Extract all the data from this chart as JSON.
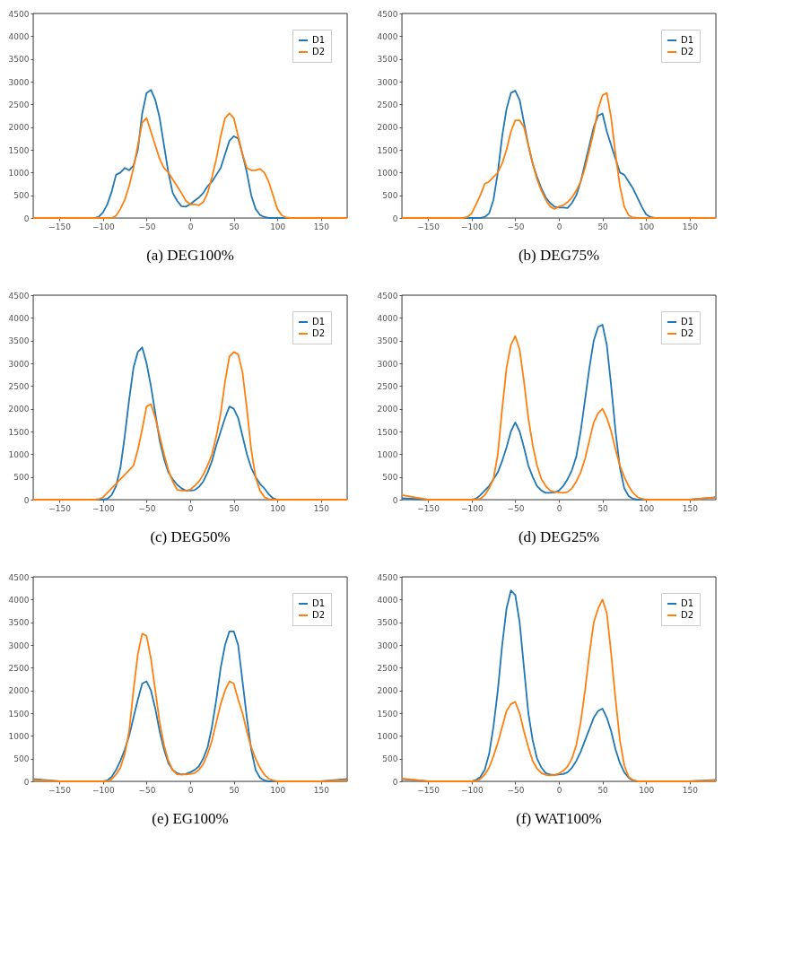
{
  "chart_data": [
    {
      "type": "line",
      "title": "(a) DEG100%",
      "xlim": [
        -180,
        180
      ],
      "xticks": [
        -150,
        -100,
        -50,
        0,
        50,
        100,
        150
      ],
      "ylim": [
        0,
        4500
      ],
      "yticks": [
        0,
        500,
        1000,
        1500,
        2000,
        2500,
        3000,
        3500,
        4000,
        4500
      ],
      "legend": "top right",
      "x": [
        -180,
        -150,
        -120,
        -115,
        -110,
        -105,
        -100,
        -95,
        -90,
        -85,
        -80,
        -75,
        -70,
        -65,
        -60,
        -55,
        -50,
        -45,
        -40,
        -35,
        -30,
        -25,
        -20,
        -15,
        -10,
        -5,
        0,
        5,
        10,
        15,
        20,
        25,
        30,
        35,
        40,
        45,
        50,
        55,
        60,
        65,
        70,
        75,
        80,
        85,
        90,
        95,
        100,
        105,
        110,
        115,
        120,
        150,
        180
      ],
      "series": [
        {
          "name": "D1",
          "color": "#1f77b4",
          "values": [
            null,
            null,
            null,
            0,
            0,
            20,
            120,
            300,
            580,
            950,
            1000,
            1100,
            1050,
            1150,
            1500,
            2300,
            2750,
            2820,
            2600,
            2200,
            1600,
            1000,
            550,
            380,
            260,
            250,
            300,
            380,
            450,
            550,
            700,
            800,
            950,
            1100,
            1400,
            1700,
            1800,
            1750,
            1400,
            1000,
            500,
            200,
            70,
            20,
            0,
            0,
            0,
            0,
            0,
            0,
            null,
            null,
            null
          ]
        },
        {
          "name": "D2",
          "color": "#ff7f0e",
          "values": [
            0,
            0,
            0,
            0,
            0,
            0,
            0,
            0,
            0,
            50,
            200,
            400,
            700,
            1100,
            1600,
            2100,
            2200,
            1900,
            1600,
            1300,
            1100,
            1000,
            850,
            700,
            550,
            380,
            300,
            300,
            280,
            350,
            550,
            900,
            1300,
            1800,
            2200,
            2300,
            2200,
            1800,
            1400,
            1100,
            1050,
            1050,
            1080,
            1000,
            800,
            500,
            200,
            60,
            10,
            0,
            0,
            0,
            0
          ]
        }
      ]
    },
    {
      "type": "line",
      "title": "(b) DEG75%",
      "xlim": [
        -180,
        180
      ],
      "xticks": [
        -150,
        -100,
        -50,
        0,
        50,
        100,
        150
      ],
      "ylim": [
        0,
        4500
      ],
      "yticks": [
        0,
        500,
        1000,
        1500,
        2000,
        2500,
        3000,
        3500,
        4000,
        4500
      ],
      "legend": "top right",
      "x": [
        -180,
        -150,
        -120,
        -115,
        -110,
        -105,
        -100,
        -95,
        -90,
        -85,
        -80,
        -75,
        -70,
        -65,
        -60,
        -55,
        -50,
        -45,
        -40,
        -35,
        -30,
        -25,
        -20,
        -15,
        -10,
        -5,
        0,
        5,
        10,
        15,
        20,
        25,
        30,
        35,
        40,
        45,
        50,
        55,
        60,
        65,
        70,
        75,
        80,
        85,
        90,
        95,
        100,
        105,
        110,
        115,
        120,
        150,
        180
      ],
      "series": [
        {
          "name": "D1",
          "color": "#1f77b4",
          "values": [
            null,
            null,
            null,
            0,
            0,
            0,
            0,
            0,
            0,
            20,
            100,
            400,
            1000,
            1800,
            2400,
            2750,
            2800,
            2600,
            2100,
            1600,
            1200,
            900,
            650,
            450,
            330,
            250,
            230,
            230,
            220,
            330,
            500,
            800,
            1200,
            1600,
            2000,
            2250,
            2300,
            1900,
            1600,
            1300,
            1000,
            950,
            800,
            650,
            450,
            250,
            80,
            20,
            0,
            0,
            null,
            null,
            null
          ]
        },
        {
          "name": "D2",
          "color": "#ff7f0e",
          "values": [
            0,
            0,
            0,
            0,
            0,
            20,
            100,
            300,
            500,
            750,
            800,
            900,
            1000,
            1200,
            1500,
            1900,
            2150,
            2150,
            2000,
            1600,
            1200,
            850,
            600,
            400,
            250,
            200,
            250,
            280,
            350,
            450,
            600,
            800,
            1100,
            1500,
            1900,
            2400,
            2700,
            2750,
            2200,
            1400,
            700,
            250,
            60,
            10,
            0,
            0,
            0,
            0,
            0,
            0,
            0,
            0,
            0
          ]
        }
      ]
    },
    {
      "type": "line",
      "title": "(c) DEG50%",
      "xlim": [
        -180,
        180
      ],
      "xticks": [
        -150,
        -100,
        -50,
        0,
        50,
        100,
        150
      ],
      "ylim": [
        0,
        4500
      ],
      "yticks": [
        0,
        500,
        1000,
        1500,
        2000,
        2500,
        3000,
        3500,
        4000,
        4500
      ],
      "legend": "top right",
      "x": [
        -180,
        -150,
        -120,
        -115,
        -110,
        -105,
        -100,
        -95,
        -90,
        -85,
        -80,
        -75,
        -70,
        -65,
        -60,
        -55,
        -50,
        -45,
        -40,
        -35,
        -30,
        -25,
        -20,
        -15,
        -10,
        -5,
        0,
        5,
        10,
        15,
        20,
        25,
        30,
        35,
        40,
        45,
        50,
        55,
        60,
        65,
        70,
        75,
        80,
        85,
        90,
        95,
        100,
        105,
        110,
        115,
        120,
        150,
        180
      ],
      "series": [
        {
          "name": "D1",
          "color": "#1f77b4",
          "values": [
            null,
            null,
            null,
            0,
            0,
            0,
            0,
            20,
            100,
            300,
            700,
            1400,
            2200,
            2900,
            3250,
            3350,
            3000,
            2500,
            1900,
            1300,
            900,
            600,
            450,
            330,
            250,
            200,
            200,
            210,
            280,
            400,
            600,
            850,
            1200,
            1500,
            1800,
            2050,
            2000,
            1800,
            1400,
            1000,
            700,
            500,
            350,
            250,
            120,
            30,
            0,
            0,
            null,
            null,
            null,
            null,
            null
          ]
        },
        {
          "name": "D2",
          "color": "#ff7f0e",
          "values": [
            0,
            0,
            0,
            0,
            0,
            10,
            50,
            150,
            250,
            350,
            450,
            550,
            650,
            750,
            1100,
            1550,
            2050,
            2100,
            1800,
            1400,
            1000,
            650,
            400,
            220,
            200,
            200,
            220,
            300,
            400,
            550,
            750,
            1000,
            1400,
            1900,
            2600,
            3150,
            3250,
            3200,
            2800,
            2000,
            1100,
            500,
            200,
            60,
            10,
            0,
            0,
            0,
            0,
            0,
            0,
            0,
            0
          ]
        }
      ]
    },
    {
      "type": "line",
      "title": "(d) DEG25%",
      "xlim": [
        -180,
        180
      ],
      "xticks": [
        -150,
        -100,
        -50,
        0,
        50,
        100,
        150
      ],
      "ylim": [
        0,
        4500
      ],
      "yticks": [
        0,
        500,
        1000,
        1500,
        2000,
        2500,
        3000,
        3500,
        4000,
        4500
      ],
      "legend": "top right",
      "x": [
        -180,
        -150,
        -120,
        -115,
        -110,
        -105,
        -100,
        -95,
        -90,
        -85,
        -80,
        -75,
        -70,
        -65,
        -60,
        -55,
        -50,
        -45,
        -40,
        -35,
        -30,
        -25,
        -20,
        -15,
        -10,
        -5,
        0,
        5,
        10,
        15,
        20,
        25,
        30,
        35,
        40,
        45,
        50,
        55,
        60,
        65,
        70,
        75,
        80,
        85,
        90,
        95,
        100,
        105,
        110,
        115,
        120,
        150,
        180
      ],
      "series": [
        {
          "name": "D1",
          "color": "#1f77b4",
          "values": [
            30,
            0,
            0,
            0,
            0,
            0,
            0,
            20,
            100,
            200,
            300,
            450,
            600,
            850,
            1150,
            1500,
            1700,
            1500,
            1150,
            750,
            500,
            300,
            200,
            150,
            150,
            160,
            200,
            300,
            450,
            650,
            950,
            1500,
            2200,
            2900,
            3500,
            3800,
            3850,
            3400,
            2500,
            1500,
            700,
            250,
            80,
            20,
            0,
            0,
            0,
            null,
            null,
            null,
            null,
            0,
            50
          ]
        },
        {
          "name": "D2",
          "color": "#ff7f0e",
          "values": [
            100,
            0,
            0,
            0,
            0,
            0,
            0,
            0,
            20,
            100,
            250,
            450,
            1000,
            2000,
            2900,
            3400,
            3600,
            3300,
            2600,
            1800,
            1200,
            750,
            450,
            300,
            200,
            170,
            160,
            150,
            170,
            250,
            400,
            600,
            900,
            1300,
            1700,
            1900,
            2000,
            1800,
            1500,
            1100,
            750,
            500,
            300,
            150,
            60,
            20,
            0,
            0,
            0,
            0,
            0,
            0,
            50
          ]
        }
      ]
    },
    {
      "type": "line",
      "title": "(e) EG100%",
      "xlim": [
        -180,
        180
      ],
      "xticks": [
        -150,
        -100,
        -50,
        0,
        50,
        100,
        150
      ],
      "ylim": [
        0,
        4500
      ],
      "yticks": [
        0,
        500,
        1000,
        1500,
        2000,
        2500,
        3000,
        3500,
        4000,
        4500
      ],
      "legend": "top right",
      "x": [
        -180,
        -150,
        -120,
        -115,
        -110,
        -105,
        -100,
        -95,
        -90,
        -85,
        -80,
        -75,
        -70,
        -65,
        -60,
        -55,
        -50,
        -45,
        -40,
        -35,
        -30,
        -25,
        -20,
        -15,
        -10,
        -5,
        0,
        5,
        10,
        15,
        20,
        25,
        30,
        35,
        40,
        45,
        50,
        55,
        60,
        65,
        70,
        75,
        80,
        85,
        90,
        95,
        100,
        105,
        110,
        115,
        120,
        150,
        180
      ],
      "series": [
        {
          "name": "D1",
          "color": "#1f77b4",
          "values": [
            50,
            0,
            0,
            0,
            0,
            0,
            0,
            20,
            100,
            250,
            450,
            700,
            1000,
            1400,
            1800,
            2150,
            2200,
            2000,
            1600,
            1100,
            700,
            400,
            250,
            180,
            150,
            160,
            200,
            250,
            330,
            500,
            750,
            1200,
            1800,
            2500,
            3000,
            3300,
            3300,
            3000,
            2200,
            1400,
            700,
            250,
            80,
            20,
            0,
            0,
            0,
            0,
            0,
            0,
            0,
            0,
            50
          ]
        },
        {
          "name": "D2",
          "color": "#ff7f0e",
          "values": [
            30,
            0,
            0,
            0,
            0,
            0,
            0,
            0,
            50,
            150,
            300,
            600,
            1100,
            2000,
            2800,
            3250,
            3200,
            2700,
            2000,
            1300,
            800,
            450,
            250,
            150,
            150,
            150,
            160,
            180,
            250,
            380,
            600,
            900,
            1300,
            1700,
            2000,
            2200,
            2150,
            1800,
            1500,
            1100,
            750,
            500,
            300,
            150,
            60,
            20,
            0,
            0,
            0,
            0,
            0,
            0,
            30
          ]
        }
      ]
    },
    {
      "type": "line",
      "title": "(f) WAT100%",
      "xlim": [
        -180,
        180
      ],
      "xticks": [
        -150,
        -100,
        -50,
        0,
        50,
        100,
        150
      ],
      "ylim": [
        0,
        4500
      ],
      "yticks": [
        0,
        500,
        1000,
        1500,
        2000,
        2500,
        3000,
        3500,
        4000,
        4500
      ],
      "legend": "top right",
      "x": [
        -180,
        -150,
        -120,
        -115,
        -110,
        -105,
        -100,
        -95,
        -90,
        -85,
        -80,
        -75,
        -70,
        -65,
        -60,
        -55,
        -50,
        -45,
        -40,
        -35,
        -30,
        -25,
        -20,
        -15,
        -10,
        -5,
        0,
        5,
        10,
        15,
        20,
        25,
        30,
        35,
        40,
        45,
        50,
        55,
        60,
        65,
        70,
        75,
        80,
        85,
        90,
        95,
        100,
        105,
        110,
        115,
        120,
        150,
        180
      ],
      "series": [
        {
          "name": "D1",
          "color": "#1f77b4",
          "values": [
            50,
            0,
            0,
            0,
            0,
            0,
            0,
            30,
            100,
            250,
            600,
            1200,
            2000,
            3000,
            3800,
            4200,
            4100,
            3500,
            2500,
            1500,
            900,
            500,
            300,
            180,
            150,
            140,
            150,
            160,
            200,
            300,
            450,
            650,
            900,
            1150,
            1400,
            1550,
            1600,
            1400,
            1100,
            700,
            400,
            200,
            80,
            20,
            0,
            0,
            0,
            0,
            0,
            0,
            0,
            0,
            30
          ]
        },
        {
          "name": "D2",
          "color": "#ff7f0e",
          "values": [
            60,
            0,
            0,
            0,
            0,
            0,
            0,
            10,
            50,
            150,
            300,
            550,
            850,
            1200,
            1550,
            1700,
            1750,
            1500,
            1100,
            750,
            450,
            280,
            180,
            140,
            130,
            140,
            170,
            230,
            330,
            500,
            800,
            1300,
            2000,
            2800,
            3500,
            3800,
            4000,
            3700,
            2800,
            1800,
            900,
            350,
            100,
            30,
            0,
            0,
            0,
            0,
            0,
            0,
            0,
            0,
            20
          ]
        }
      ]
    }
  ]
}
